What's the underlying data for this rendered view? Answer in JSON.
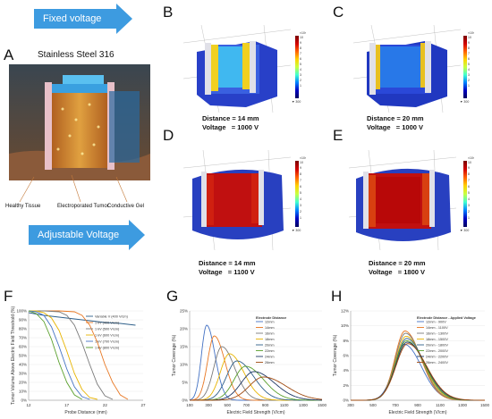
{
  "panels": {
    "A": "A",
    "B": "B",
    "C": "C",
    "D": "D",
    "E": "E",
    "F": "F",
    "G": "G",
    "H": "H"
  },
  "arrows": {
    "fixed": "Fixed voltage",
    "adjustable": "Adjustable Voltage"
  },
  "panel_a": {
    "title": "Stainless Steel 316",
    "label_healthy": "Healthy Tissue",
    "label_tumor": "Electroporated Tumor",
    "label_gel": "Conductive Gel"
  },
  "sims": {
    "B": {
      "caption": "Distance = 14 mm\nVoltage   = 1000 V",
      "cb_top": "×10³",
      "cb_ticks": [
        "10",
        "9",
        "8",
        "7",
        "6",
        "5",
        "4",
        "3",
        "2",
        "1",
        "▼ 300"
      ]
    },
    "C": {
      "caption": "Distance = 20 mm\nVoltage   = 1000 V",
      "cb_top": "×10³",
      "cb_ticks": [
        "10",
        "9",
        "8",
        "7",
        "6",
        "5",
        "4",
        "3",
        "2",
        "1",
        "▼ 300"
      ]
    },
    "D": {
      "caption": "Distance = 14 mm\nVoltage   = 1100 V",
      "cb_top": "×10³",
      "cb_ticks": [
        "10",
        "9",
        "8",
        "7",
        "6",
        "5",
        "4",
        "3",
        "2",
        "1",
        "▼ 300"
      ]
    },
    "E": {
      "caption": "Distance = 20 mm\nVoltage   = 1800 V",
      "cb_top": "×10³",
      "cb_ticks": [
        "10",
        "9",
        "8",
        "7",
        "6",
        "5",
        "4",
        "3",
        "2",
        "1",
        "▼ 300"
      ]
    }
  },
  "colors": {
    "arrow": "#3d9be0"
  },
  "chart_data": [
    {
      "id": "F",
      "type": "line",
      "xlabel": "Probe Distance (mm)",
      "ylabel": "Tumor Volume Above Electric Field Threshold (%)",
      "xlim": [
        12,
        27
      ],
      "ylim": [
        0,
        100
      ],
      "xticks": [
        "12",
        "17",
        "22",
        "27"
      ],
      "yticks": [
        "0%",
        "10%",
        "20%",
        "30%",
        "40%",
        "50%",
        "60%",
        "70%",
        "80%",
        "90%",
        "100%"
      ],
      "series": [
        {
          "name": "Variable V (400 V/cm)",
          "color": "#2e5f8a",
          "x": [
            12,
            14,
            16,
            18,
            20,
            22,
            24,
            26
          ],
          "y": [
            98,
            95,
            93,
            91,
            89,
            87,
            86,
            84
          ]
        },
        {
          "name": "1 kV (400 V/cm)",
          "color": "#e87722",
          "x": [
            12,
            14,
            16,
            18,
            19,
            20,
            21,
            22,
            23,
            24,
            25
          ],
          "y": [
            100,
            100,
            100,
            99,
            95,
            84,
            65,
            40,
            20,
            6,
            1
          ]
        },
        {
          "name": "1 kV (500 V/cm)",
          "color": "#7a7a7a",
          "x": [
            12,
            14,
            16,
            17,
            18,
            19,
            20,
            21,
            22,
            23
          ],
          "y": [
            100,
            100,
            99,
            95,
            84,
            64,
            40,
            18,
            5,
            1
          ]
        },
        {
          "name": "1 kV (600 V/cm)",
          "color": "#e8b400",
          "x": [
            12,
            13,
            14,
            15,
            16,
            17,
            18,
            19,
            20,
            21
          ],
          "y": [
            100,
            100,
            98,
            92,
            78,
            55,
            30,
            12,
            3,
            1
          ]
        },
        {
          "name": "1 kV (700 V/cm)",
          "color": "#4472c4",
          "x": [
            12,
            13,
            14,
            15,
            16,
            17,
            18,
            19,
            20
          ],
          "y": [
            100,
            99,
            95,
            82,
            60,
            35,
            15,
            4,
            1
          ]
        },
        {
          "name": "1 kV (800 V/cm)",
          "color": "#5aa02c",
          "x": [
            12,
            13,
            14,
            15,
            16,
            17,
            18,
            19
          ],
          "y": [
            100,
            97,
            88,
            68,
            42,
            20,
            6,
            1
          ]
        }
      ]
    },
    {
      "id": "G",
      "type": "line",
      "xlabel": "Electric Field Strength (V/cm)",
      "ylabel": "Tumor Coverage (%)",
      "legend_title": "Electrode Distance",
      "xlim": [
        100,
        1500
      ],
      "ylim": [
        0,
        25
      ],
      "xticks": [
        "100",
        "300",
        "500",
        "700",
        "900",
        "1100",
        "1300",
        "1500"
      ],
      "yticks": [
        "0%",
        "5%",
        "10%",
        "15%",
        "20%",
        "25%"
      ],
      "series": [
        {
          "name": "12mm",
          "color": "#4472c4",
          "peak": 280,
          "height": 21,
          "width": 55
        },
        {
          "name": "14mm",
          "color": "#e87722",
          "peak": 360,
          "height": 18,
          "width": 70
        },
        {
          "name": "16mm",
          "color": "#7a7a7a",
          "peak": 440,
          "height": 15,
          "width": 85
        },
        {
          "name": "18mm",
          "color": "#e8b400",
          "peak": 520,
          "height": 13,
          "width": 95
        },
        {
          "name": "20mm",
          "color": "#2e5f8a",
          "peak": 600,
          "height": 11,
          "width": 110
        },
        {
          "name": "22mm",
          "color": "#5aa02c",
          "peak": 690,
          "height": 9.5,
          "width": 120
        },
        {
          "name": "24mm",
          "color": "#203864",
          "peak": 780,
          "height": 8,
          "width": 135
        },
        {
          "name": "26mm",
          "color": "#9e480e",
          "peak": 880,
          "height": 6.5,
          "width": 150
        }
      ]
    },
    {
      "id": "H",
      "type": "line",
      "xlabel": "Electric Field Strength (V/cm)",
      "ylabel": "Tumor Coverage (%)",
      "legend_title": "Electrode Distance - Applied Voltage",
      "xlim": [
        300,
        1500
      ],
      "ylim": [
        0,
        12
      ],
      "xticks": [
        "300",
        "500",
        "700",
        "900",
        "1100",
        "1300",
        "1500"
      ],
      "yticks": [
        "0%",
        "2%",
        "4%",
        "6%",
        "8%",
        "10%",
        "12%"
      ],
      "series": [
        {
          "name": "12mm - 900V",
          "color": "#4472c4",
          "peak": 780,
          "height": 7.5,
          "width": 95
        },
        {
          "name": "14mm - 1100V",
          "color": "#e87722",
          "peak": 785,
          "height": 9.3,
          "width": 90
        },
        {
          "name": "16mm - 1300V",
          "color": "#7a7a7a",
          "peak": 790,
          "height": 9.0,
          "width": 92
        },
        {
          "name": "18mm - 1500V",
          "color": "#e8b400",
          "peak": 795,
          "height": 8.6,
          "width": 95
        },
        {
          "name": "20mm - 1800V",
          "color": "#2e5f8a",
          "peak": 800,
          "height": 8.3,
          "width": 98
        },
        {
          "name": "22mm - 2000V",
          "color": "#5aa02c",
          "peak": 800,
          "height": 8.0,
          "width": 100
        },
        {
          "name": "24mm - 2200V",
          "color": "#203864",
          "peak": 805,
          "height": 7.8,
          "width": 103
        },
        {
          "name": "26mm - 2400V",
          "color": "#9e480e",
          "peak": 810,
          "height": 7.6,
          "width": 105
        }
      ]
    }
  ]
}
